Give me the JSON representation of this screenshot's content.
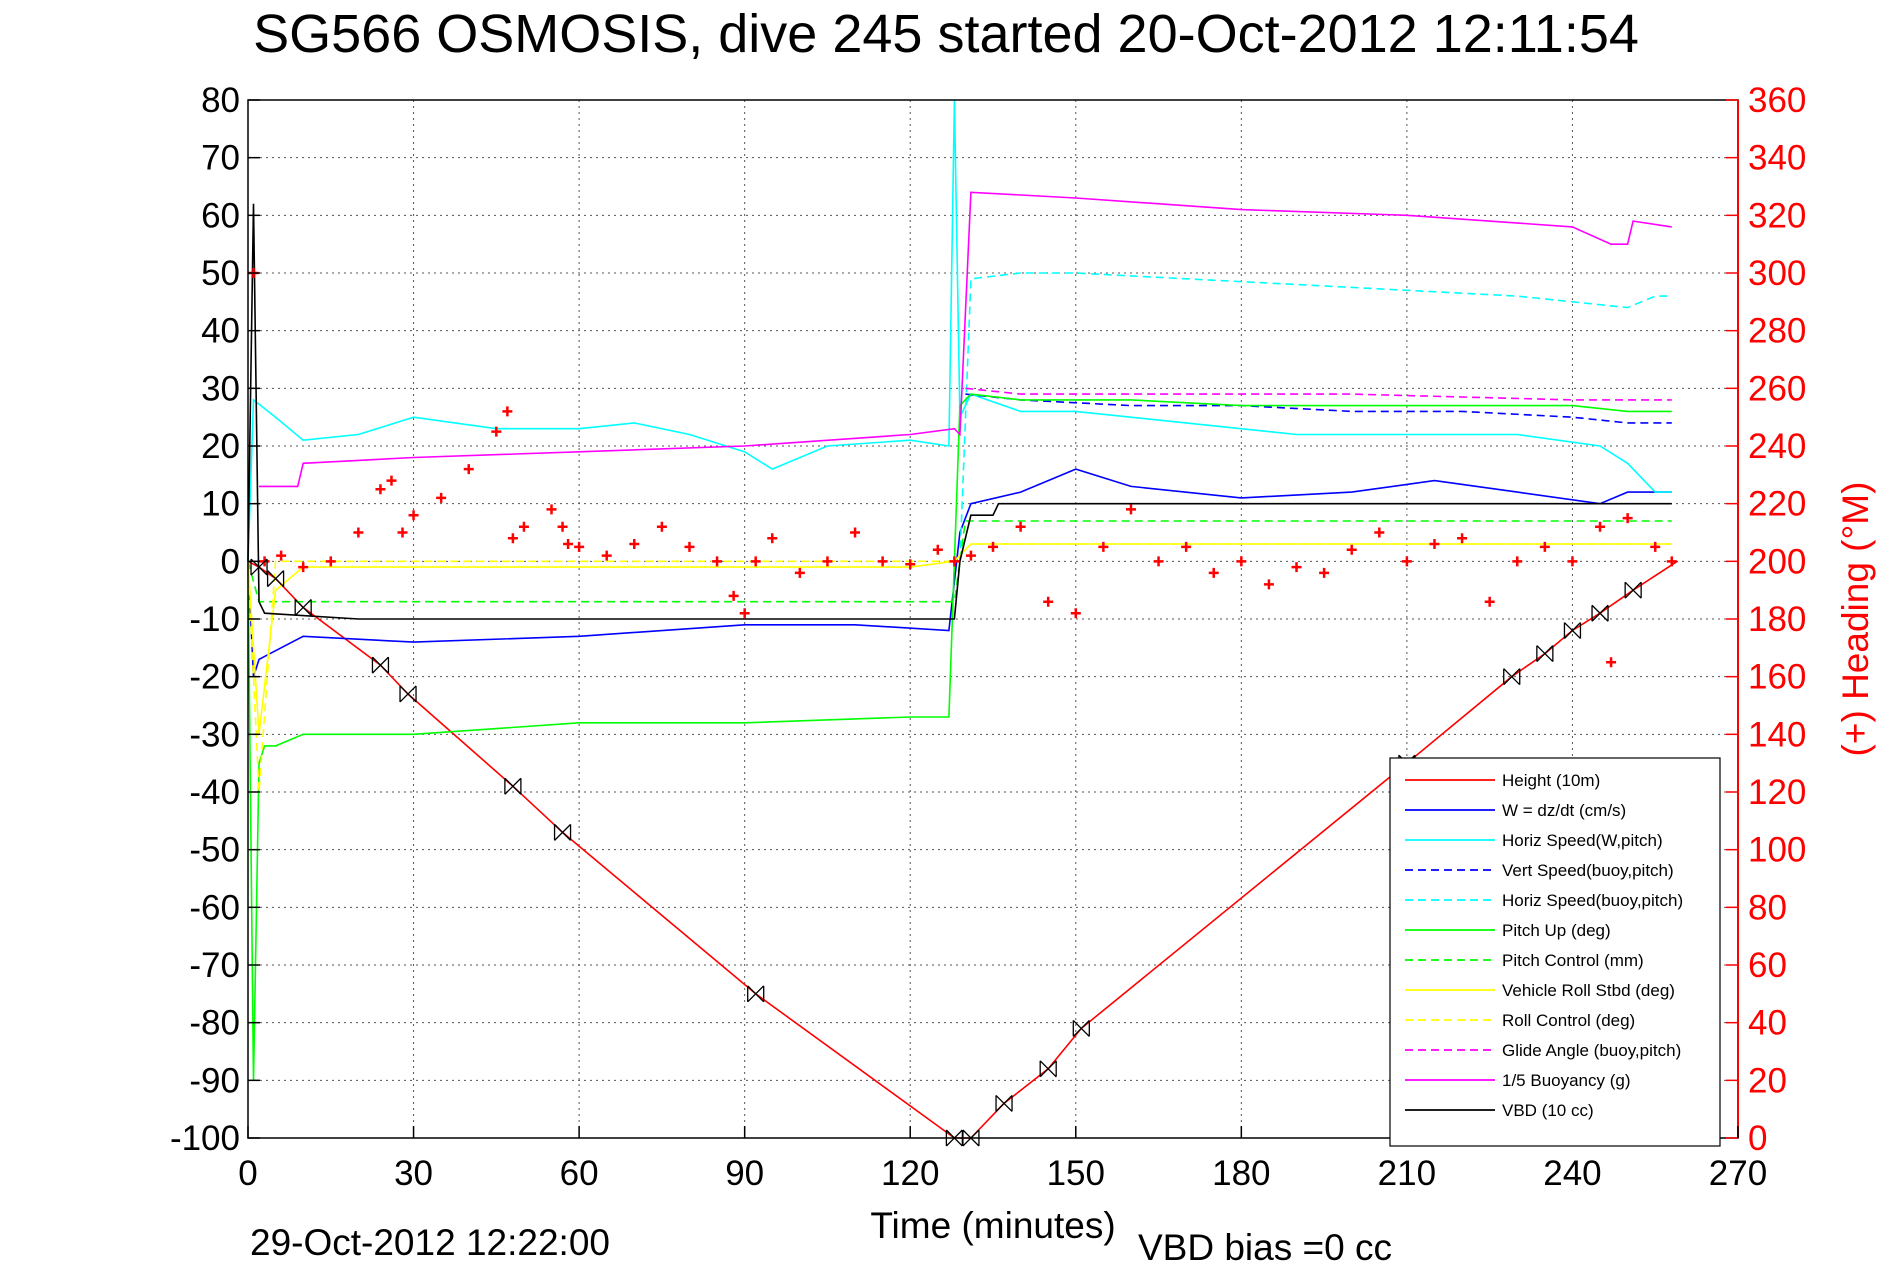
{
  "chart_data": {
    "type": "line",
    "title": "SG566 OSMOSIS, dive 245 started 20-Oct-2012 12:11:54",
    "xlabel": "Time (minutes)",
    "ylabel": "",
    "ylabel_right": "(+) Heading (°M)",
    "xlim": [
      0,
      270
    ],
    "ylim": [
      -100,
      80
    ],
    "ylim_right": [
      0,
      360
    ],
    "x_ticks": [
      "0",
      "30",
      "60",
      "90",
      "120",
      "150",
      "180",
      "210",
      "240",
      "270"
    ],
    "y_ticks": [
      "80",
      "70",
      "60",
      "50",
      "40",
      "30",
      "20",
      "10",
      "0",
      "-10",
      "-20",
      "-30",
      "-40",
      "-50",
      "-60",
      "-70",
      "-80",
      "-90",
      "-100"
    ],
    "y_ticks_right": [
      "360",
      "340",
      "320",
      "300",
      "280",
      "260",
      "240",
      "220",
      "200",
      "180",
      "160",
      "140",
      "120",
      "100",
      "80",
      "60",
      "40",
      "20",
      "0"
    ],
    "grid": true,
    "legend_position": "bottom-right",
    "footer_date": "29-Oct-2012 12:22:00",
    "footer_bias": "VBD bias =0 cc",
    "series": [
      {
        "name": "Height (10m)",
        "color": "#ff0000",
        "style": "solid",
        "x": [
          0,
          2,
          5,
          10,
          24,
          29,
          48,
          57,
          92,
          128,
          131,
          137,
          145,
          151,
          210,
          229,
          235,
          240,
          245,
          251,
          259
        ],
        "values": [
          0,
          -1,
          -3,
          -8,
          -18,
          -23,
          -39,
          -47,
          -75,
          -100,
          -100,
          -94,
          -88,
          -81,
          -35,
          -20,
          -16,
          -12,
          -9,
          -5,
          0
        ]
      },
      {
        "name": "W = dz/dt (cm/s)",
        "color": "#0000ff",
        "style": "solid",
        "x": [
          0,
          1,
          2,
          4,
          10,
          30,
          60,
          90,
          110,
          127,
          129,
          131,
          140,
          150,
          160,
          180,
          200,
          215,
          230,
          245,
          250,
          255,
          258
        ],
        "values": [
          0,
          -20,
          -17,
          -16,
          -13,
          -14,
          -13,
          -11,
          -11,
          -12,
          5,
          10,
          12,
          16,
          13,
          11,
          12,
          14,
          12,
          10,
          12,
          12,
          12
        ]
      },
      {
        "name": "Horiz Speed(W,pitch)",
        "color": "#00ffff",
        "style": "solid",
        "x": [
          0,
          1,
          5,
          10,
          20,
          30,
          45,
          60,
          70,
          80,
          90,
          95,
          105,
          120,
          127,
          128,
          129,
          131,
          140,
          150,
          170,
          190,
          210,
          230,
          245,
          250,
          255,
          258
        ],
        "values": [
          0,
          28,
          25,
          21,
          22,
          25,
          23,
          23,
          24,
          22,
          19,
          16,
          20,
          21,
          20,
          80,
          25,
          29,
          26,
          26,
          24,
          22,
          22,
          22,
          20,
          17,
          12,
          12
        ]
      },
      {
        "name": "Vert Speed(buoy,pitch)",
        "color": "#0000ff",
        "style": "dashed",
        "x": [
          130,
          140,
          160,
          180,
          200,
          220,
          240,
          250,
          258
        ],
        "values": [
          29,
          28,
          27,
          27,
          26,
          26,
          25,
          24,
          24
        ]
      },
      {
        "name": "Horiz Speed(buoy,pitch)",
        "color": "#00ffff",
        "style": "dashed",
        "x": [
          129,
          131,
          140,
          150,
          170,
          190,
          210,
          230,
          240,
          250,
          255,
          258
        ],
        "values": [
          0,
          49,
          50,
          50,
          49,
          48,
          47,
          46,
          45,
          44,
          46,
          46
        ]
      },
      {
        "name": "Pitch Up (deg)",
        "color": "#00ff00",
        "style": "solid",
        "x": [
          0,
          1,
          2,
          3,
          5,
          10,
          30,
          60,
          90,
          120,
          127,
          128,
          129,
          131,
          140,
          160,
          180,
          200,
          220,
          240,
          250,
          258
        ],
        "values": [
          0,
          -90,
          -35,
          -32,
          -32,
          -30,
          -30,
          -28,
          -28,
          -27,
          -27,
          0,
          27,
          29,
          28,
          28,
          27,
          27,
          27,
          27,
          26,
          26
        ]
      },
      {
        "name": "Pitch Control (mm)",
        "color": "#00ff00",
        "style": "dashed",
        "x": [
          0,
          2,
          4,
          128,
          130,
          258
        ],
        "values": [
          0,
          -7,
          -7,
          -7,
          7,
          7
        ]
      },
      {
        "name": "Vehicle Roll Stbd (deg)",
        "color": "#ffff00",
        "style": "solid",
        "x": [
          0,
          2,
          5,
          10,
          30,
          60,
          90,
          120,
          128,
          131,
          150,
          180,
          210,
          240,
          258
        ],
        "values": [
          0,
          -30,
          -5,
          -1,
          -1,
          -1,
          -1,
          -1,
          0,
          3,
          3,
          3,
          3,
          3,
          3
        ]
      },
      {
        "name": "Roll Control (deg)",
        "color": "#ffff00",
        "style": "dashed",
        "x": [
          0,
          2,
          5,
          10,
          60,
          120,
          128,
          131,
          200,
          258
        ],
        "values": [
          0,
          -40,
          0,
          0,
          0,
          0,
          0,
          3,
          3,
          3
        ]
      },
      {
        "name": "Glide Angle (buoy,pitch)",
        "color": "#ff00ff",
        "style": "dashed",
        "x": [
          130,
          140,
          170,
          200,
          240,
          250,
          258
        ],
        "values": [
          30,
          29,
          29,
          29,
          28,
          28,
          28
        ]
      },
      {
        "name": "1/5 Buoyancy (g)",
        "color": "#ff00ff",
        "style": "solid",
        "x": [
          2,
          5,
          9,
          10,
          30,
          60,
          90,
          120,
          128,
          129,
          131,
          150,
          180,
          210,
          240,
          247,
          250,
          251,
          258
        ],
        "values": [
          13,
          13,
          13,
          17,
          18,
          19,
          20,
          22,
          23,
          22,
          64,
          63,
          61,
          60,
          58,
          55,
          55,
          59,
          58
        ]
      },
      {
        "name": "VBD (10 cc)",
        "color": "#000000",
        "style": "solid",
        "x": [
          0,
          1,
          2,
          3,
          20,
          60,
          90,
          128,
          129,
          131,
          135,
          136,
          200,
          258
        ],
        "values": [
          0,
          62,
          -7,
          -9,
          -10,
          -10,
          -10,
          -10,
          0,
          8,
          8,
          10,
          10,
          10
        ]
      },
      {
        "name": "(+) Heading (°M)",
        "color": "#ff0000",
        "style": "markers",
        "axis": "right",
        "x": [
          1,
          3,
          6,
          10,
          15,
          20,
          24,
          26,
          28,
          30,
          35,
          40,
          45,
          47,
          48,
          50,
          55,
          57,
          58,
          60,
          65,
          70,
          75,
          80,
          85,
          88,
          90,
          92,
          95,
          100,
          105,
          110,
          115,
          120,
          125,
          128,
          131,
          135,
          140,
          145,
          150,
          155,
          160,
          165,
          170,
          175,
          180,
          185,
          190,
          195,
          200,
          205,
          210,
          215,
          220,
          225,
          230,
          235,
          240,
          245,
          247,
          250,
          255,
          258
        ],
        "values": [
          300,
          200,
          202,
          198,
          200,
          210,
          225,
          228,
          210,
          216,
          222,
          232,
          245,
          252,
          208,
          212,
          218,
          212,
          206,
          205,
          202,
          206,
          212,
          205,
          200,
          188,
          182,
          200,
          208,
          196,
          200,
          210,
          200,
          199,
          204,
          200,
          202,
          205,
          212,
          186,
          182,
          205,
          218,
          200,
          205,
          196,
          200,
          192,
          198,
          196,
          204,
          210,
          200,
          206,
          208,
          186,
          200,
          205,
          200,
          212,
          165,
          215,
          205,
          200
        ]
      }
    ]
  }
}
